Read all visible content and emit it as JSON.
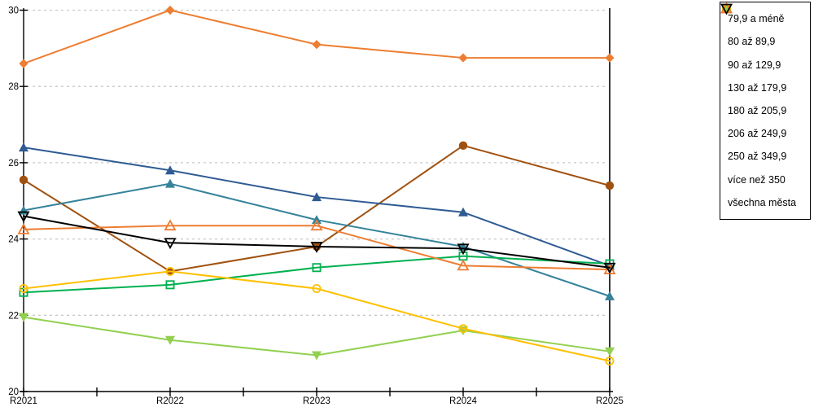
{
  "chart_data": {
    "type": "line",
    "title": "",
    "xlabel": "",
    "ylabel": "",
    "categories": [
      "R2021",
      "R2022",
      "R2023",
      "R2024",
      "R2025"
    ],
    "ylim": [
      20,
      30
    ],
    "yticks": [
      20,
      22,
      24,
      26,
      28,
      30
    ],
    "grid": "horizontal dashed",
    "legend_position": "right",
    "series": [
      {
        "name": "79,9 a méně",
        "color": "#ED7D31",
        "marker": "diamond",
        "fill": "filled",
        "values": [
          28.6,
          30.0,
          29.1,
          28.75,
          28.75
        ]
      },
      {
        "name": "80 až 89,9",
        "color": "#A0510F",
        "marker": "circle",
        "fill": "filled",
        "values": [
          25.55,
          23.15,
          23.8,
          26.45,
          25.4
        ]
      },
      {
        "name": "90 až 129,9",
        "color": "#35829B",
        "marker": "triangle-up",
        "fill": "filled",
        "values": [
          24.75,
          25.45,
          24.5,
          23.8,
          22.5
        ]
      },
      {
        "name": "130 až 179,9",
        "color": "#2F5B93",
        "marker": "triangle-up",
        "fill": "filled",
        "values": [
          26.4,
          25.8,
          25.1,
          24.7,
          23.3
        ]
      },
      {
        "name": "180 až 205,9",
        "color": "#92D050",
        "marker": "triangle-down",
        "fill": "filled",
        "values": [
          21.95,
          21.35,
          20.95,
          21.6,
          21.05
        ]
      },
      {
        "name": "206 až 249,9",
        "color": "#00B050",
        "marker": "square",
        "fill": "open",
        "values": [
          22.6,
          22.8,
          23.25,
          23.55,
          23.35
        ]
      },
      {
        "name": "250 až 349,9",
        "color": "#FFC000",
        "marker": "circle",
        "fill": "open",
        "values": [
          22.7,
          23.15,
          22.7,
          21.65,
          20.8
        ]
      },
      {
        "name": "více než 350",
        "color": "#ED7D31",
        "marker": "triangle-up",
        "fill": "open",
        "values": [
          24.25,
          24.35,
          24.35,
          23.3,
          23.2
        ]
      },
      {
        "name": "všechna města",
        "color": "#000000",
        "marker": "triangle-down",
        "fill": "open",
        "values": [
          24.6,
          23.9,
          23.8,
          23.75,
          23.25
        ]
      }
    ]
  },
  "colors": {
    "axis": "#000000",
    "grid": "#c8c8c8",
    "background": "#ffffff",
    "tick_label": "#000000"
  }
}
